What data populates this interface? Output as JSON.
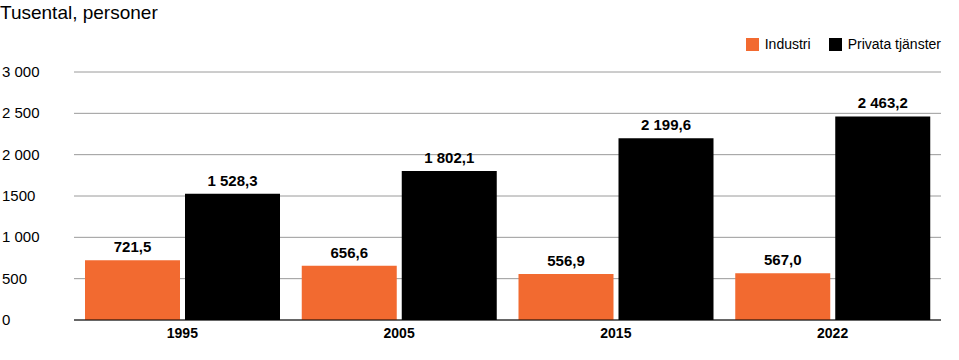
{
  "chart_data": {
    "type": "bar",
    "subtitle": "Tusental, personer",
    "categories": [
      "1995",
      "2005",
      "2015",
      "2022"
    ],
    "series": [
      {
        "name": "Industri",
        "color": "#f26a30",
        "values": [
          721.5,
          656.6,
          556.9,
          567.0
        ],
        "value_labels": [
          "721,5",
          "656,6",
          "556,9",
          "567,0"
        ]
      },
      {
        "name": "Privata tjänster",
        "color": "#000000",
        "values": [
          1528.3,
          1802.1,
          2199.6,
          2463.2
        ],
        "value_labels": [
          "1 528,3",
          "1 802,1",
          "2 199,6",
          "2 463,2"
        ]
      }
    ],
    "ylim": [
      0,
      3000
    ],
    "yticks": [
      0,
      500,
      {
        "value": 1000,
        "label": "1 000"
      },
      1500,
      {
        "value": 2000,
        "label": "2 000"
      },
      {
        "value": 2500,
        "label": "2 500"
      },
      {
        "value": 3000,
        "label": "3 000"
      }
    ],
    "grid": true,
    "legend": "top right",
    "data_labels": true
  }
}
